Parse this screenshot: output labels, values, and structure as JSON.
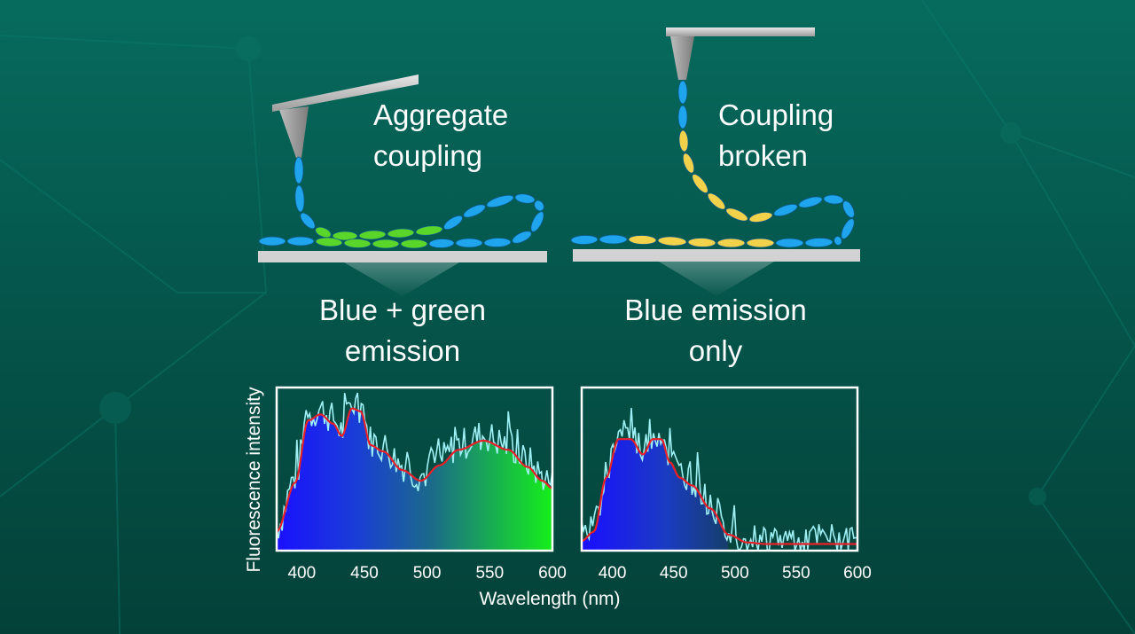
{
  "panels": {
    "left": {
      "title_line1": "Aggregate",
      "title_line2": "coupling",
      "result_line1": "Blue + green",
      "result_line2": "emission"
    },
    "right": {
      "title_line1": "Coupling",
      "title_line2": "broken",
      "result_line1": "Blue emission",
      "result_line2": "only"
    }
  },
  "colors": {
    "background": "#066b5d",
    "blue_segment": "#1fa5ee",
    "green_segment": "#5ad62a",
    "yellow_segment": "#f1d24a",
    "fit_curve": "#e8202a",
    "raw_signal": "#9ff0f4"
  },
  "chart_data": [
    {
      "type": "area",
      "xlabel": "Wavelength (nm)",
      "ylabel": "Fluorescence intensity",
      "xlim": [
        380,
        600
      ],
      "xticks": [
        "400",
        "450",
        "500",
        "550",
        "600"
      ],
      "series": [
        {
          "x": [
            380,
            395,
            405,
            415,
            425,
            432,
            440,
            447,
            455,
            465,
            480,
            495,
            510,
            525,
            545,
            565,
            580,
            592,
            600
          ],
          "values": [
            0.1,
            0.42,
            0.82,
            0.86,
            0.8,
            0.72,
            0.9,
            0.88,
            0.66,
            0.62,
            0.5,
            0.43,
            0.53,
            0.63,
            0.69,
            0.63,
            0.52,
            0.43,
            0.38
          ]
        }
      ]
    },
    {
      "type": "area",
      "xlabel": "Wavelength (nm)",
      "ylabel": "Fluorescence intensity",
      "xlim": [
        375,
        600
      ],
      "xticks": [
        "400",
        "450",
        "500",
        "550",
        "600"
      ],
      "series": [
        {
          "x": [
            375,
            385,
            395,
            405,
            415,
            425,
            433,
            440,
            447,
            455,
            465,
            480,
            495,
            510,
            525,
            545,
            570,
            600
          ],
          "values": [
            0.04,
            0.1,
            0.45,
            0.7,
            0.7,
            0.6,
            0.7,
            0.7,
            0.55,
            0.45,
            0.4,
            0.25,
            0.08,
            0.03,
            0.02,
            0.02,
            0.02,
            0.02
          ]
        }
      ]
    }
  ]
}
